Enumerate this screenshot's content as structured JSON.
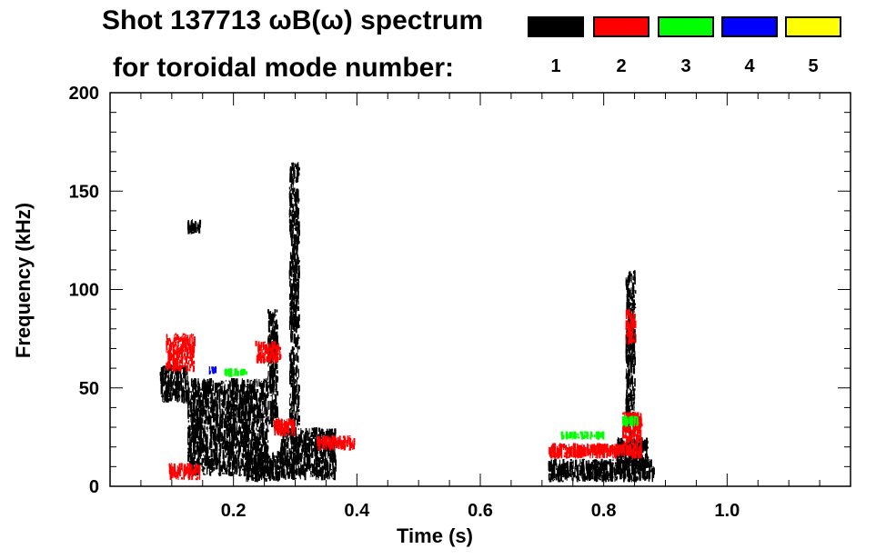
{
  "chart_data": {
    "type": "heatmap",
    "title": "Shot 137713 ωB(ω) spectrum",
    "subtitle": "for toroidal mode number:",
    "xlabel": "Time (s)",
    "ylabel": "Frequency (kHz)",
    "xlim": [
      0.0,
      1.2
    ],
    "ylim": [
      0,
      200
    ],
    "x_ticks": [
      {
        "value": 0.2,
        "label": "0.2"
      },
      {
        "value": 0.4,
        "label": "0.4"
      },
      {
        "value": 0.6,
        "label": "0.6"
      },
      {
        "value": 0.8,
        "label": "0.8"
      },
      {
        "value": 1.0,
        "label": "1.0"
      }
    ],
    "y_ticks": [
      {
        "value": 0,
        "label": "0"
      },
      {
        "value": 50,
        "label": "50"
      },
      {
        "value": 100,
        "label": "100"
      },
      {
        "value": 150,
        "label": "150"
      },
      {
        "value": 200,
        "label": "200"
      }
    ],
    "legend": [
      {
        "mode": "1",
        "color": "#000000"
      },
      {
        "mode": "2",
        "color": "#ff0000"
      },
      {
        "mode": "3",
        "color": "#00ff00"
      },
      {
        "mode": "4",
        "color": "#0000ff"
      },
      {
        "mode": "5",
        "color": "#ffff00"
      }
    ],
    "series": [
      {
        "name": "n=1",
        "color": "#000000",
        "regions": [
          {
            "t0": 0.08,
            "t1": 0.125,
            "f0": 42,
            "f1": 62
          },
          {
            "t0": 0.125,
            "t1": 0.255,
            "f0": 5,
            "f1": 55
          },
          {
            "t0": 0.125,
            "t1": 0.145,
            "f0": 128,
            "f1": 136
          },
          {
            "t0": 0.22,
            "t1": 0.275,
            "f0": 2,
            "f1": 18
          },
          {
            "t0": 0.275,
            "t1": 0.365,
            "f0": 3,
            "f1": 30
          },
          {
            "t0": 0.29,
            "t1": 0.305,
            "f0": 30,
            "f1": 165
          },
          {
            "t0": 0.255,
            "t1": 0.27,
            "f0": 30,
            "f1": 90
          },
          {
            "t0": 0.71,
            "t1": 0.88,
            "f0": 2,
            "f1": 14
          },
          {
            "t0": 0.82,
            "t1": 0.87,
            "f0": 8,
            "f1": 25
          },
          {
            "t0": 0.835,
            "t1": 0.85,
            "f0": 25,
            "f1": 110
          }
        ]
      },
      {
        "name": "n=2",
        "color": "#ff0000",
        "regions": [
          {
            "t0": 0.09,
            "t1": 0.135,
            "f0": 58,
            "f1": 78
          },
          {
            "t0": 0.095,
            "t1": 0.145,
            "f0": 3,
            "f1": 12
          },
          {
            "t0": 0.265,
            "t1": 0.3,
            "f0": 25,
            "f1": 35
          },
          {
            "t0": 0.335,
            "t1": 0.395,
            "f0": 18,
            "f1": 26
          },
          {
            "t0": 0.235,
            "t1": 0.275,
            "f0": 62,
            "f1": 74
          },
          {
            "t0": 0.71,
            "t1": 0.86,
            "f0": 14,
            "f1": 22
          },
          {
            "t0": 0.835,
            "t1": 0.85,
            "f0": 72,
            "f1": 90
          },
          {
            "t0": 0.83,
            "t1": 0.86,
            "f0": 20,
            "f1": 38
          }
        ]
      },
      {
        "name": "n=3",
        "color": "#00ff00",
        "regions": [
          {
            "t0": 0.73,
            "t1": 0.8,
            "f0": 24,
            "f1": 28
          },
          {
            "t0": 0.83,
            "t1": 0.855,
            "f0": 30,
            "f1": 36
          },
          {
            "t0": 0.185,
            "t1": 0.22,
            "f0": 56,
            "f1": 60
          }
        ]
      },
      {
        "name": "n=4",
        "color": "#0000ff",
        "regions": [
          {
            "t0": 0.16,
            "t1": 0.17,
            "f0": 57,
            "f1": 61
          }
        ]
      },
      {
        "name": "n=5",
        "color": "#ffff00",
        "regions": []
      }
    ]
  }
}
